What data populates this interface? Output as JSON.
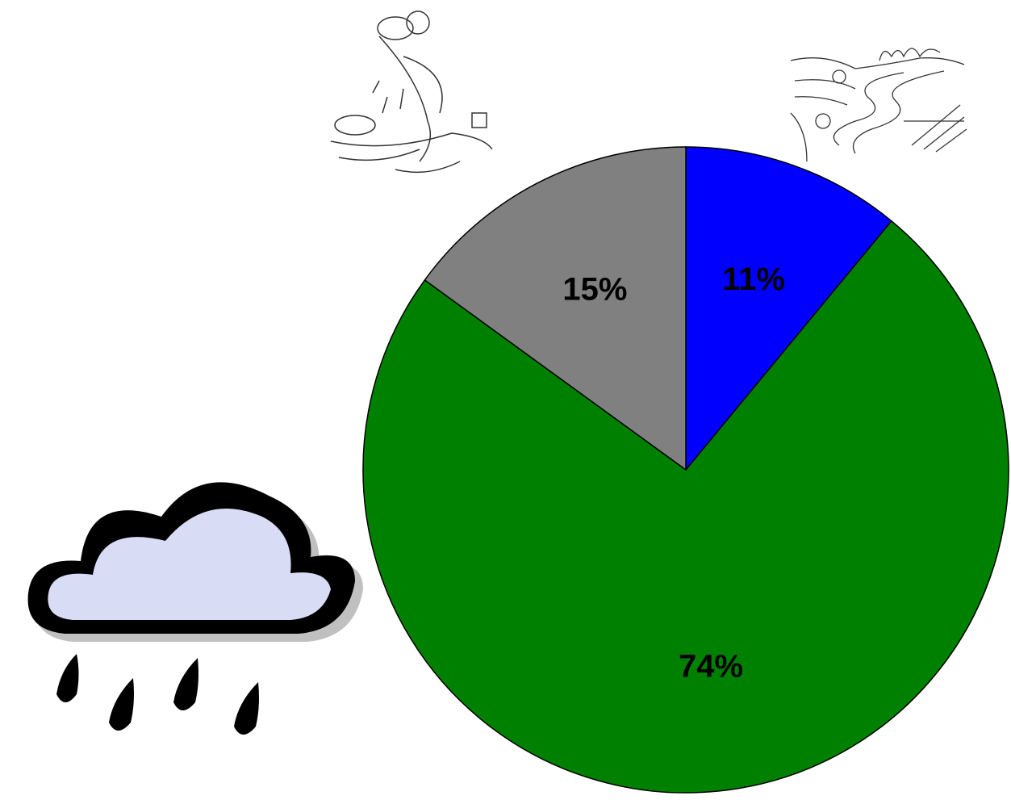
{
  "chart_data": {
    "type": "pie",
    "values": [
      11,
      74,
      15
    ],
    "value_labels": [
      "11%",
      "74%",
      "15%"
    ],
    "colors": [
      "#0000ff",
      "#008000",
      "#808080"
    ]
  }
}
